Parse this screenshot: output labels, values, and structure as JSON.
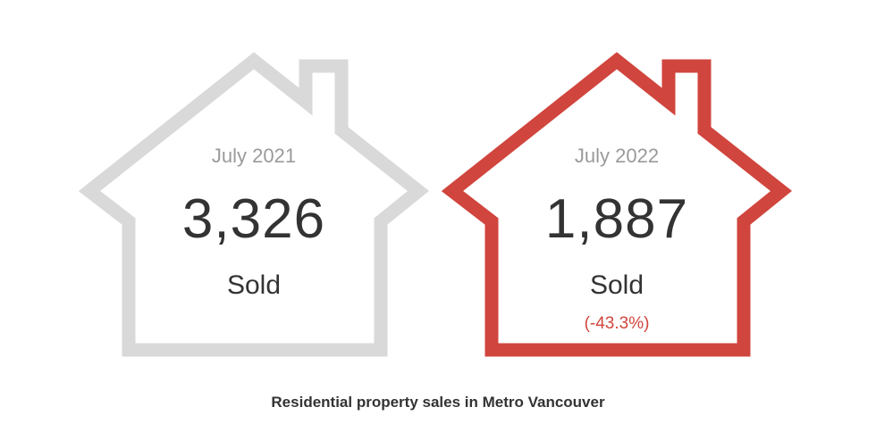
{
  "chart_data": {
    "type": "table",
    "title": "Residential property sales in Metro Vancouver",
    "cards": [
      {
        "period": "July 2021",
        "value": "3,326",
        "unit": "Sold",
        "change": "",
        "color": "#d9d9d9"
      },
      {
        "period": "July 2022",
        "value": "1,887",
        "unit": "Sold",
        "change": "(-43.3%)",
        "color": "#d0453d"
      }
    ],
    "values": [
      3326,
      1887
    ]
  }
}
